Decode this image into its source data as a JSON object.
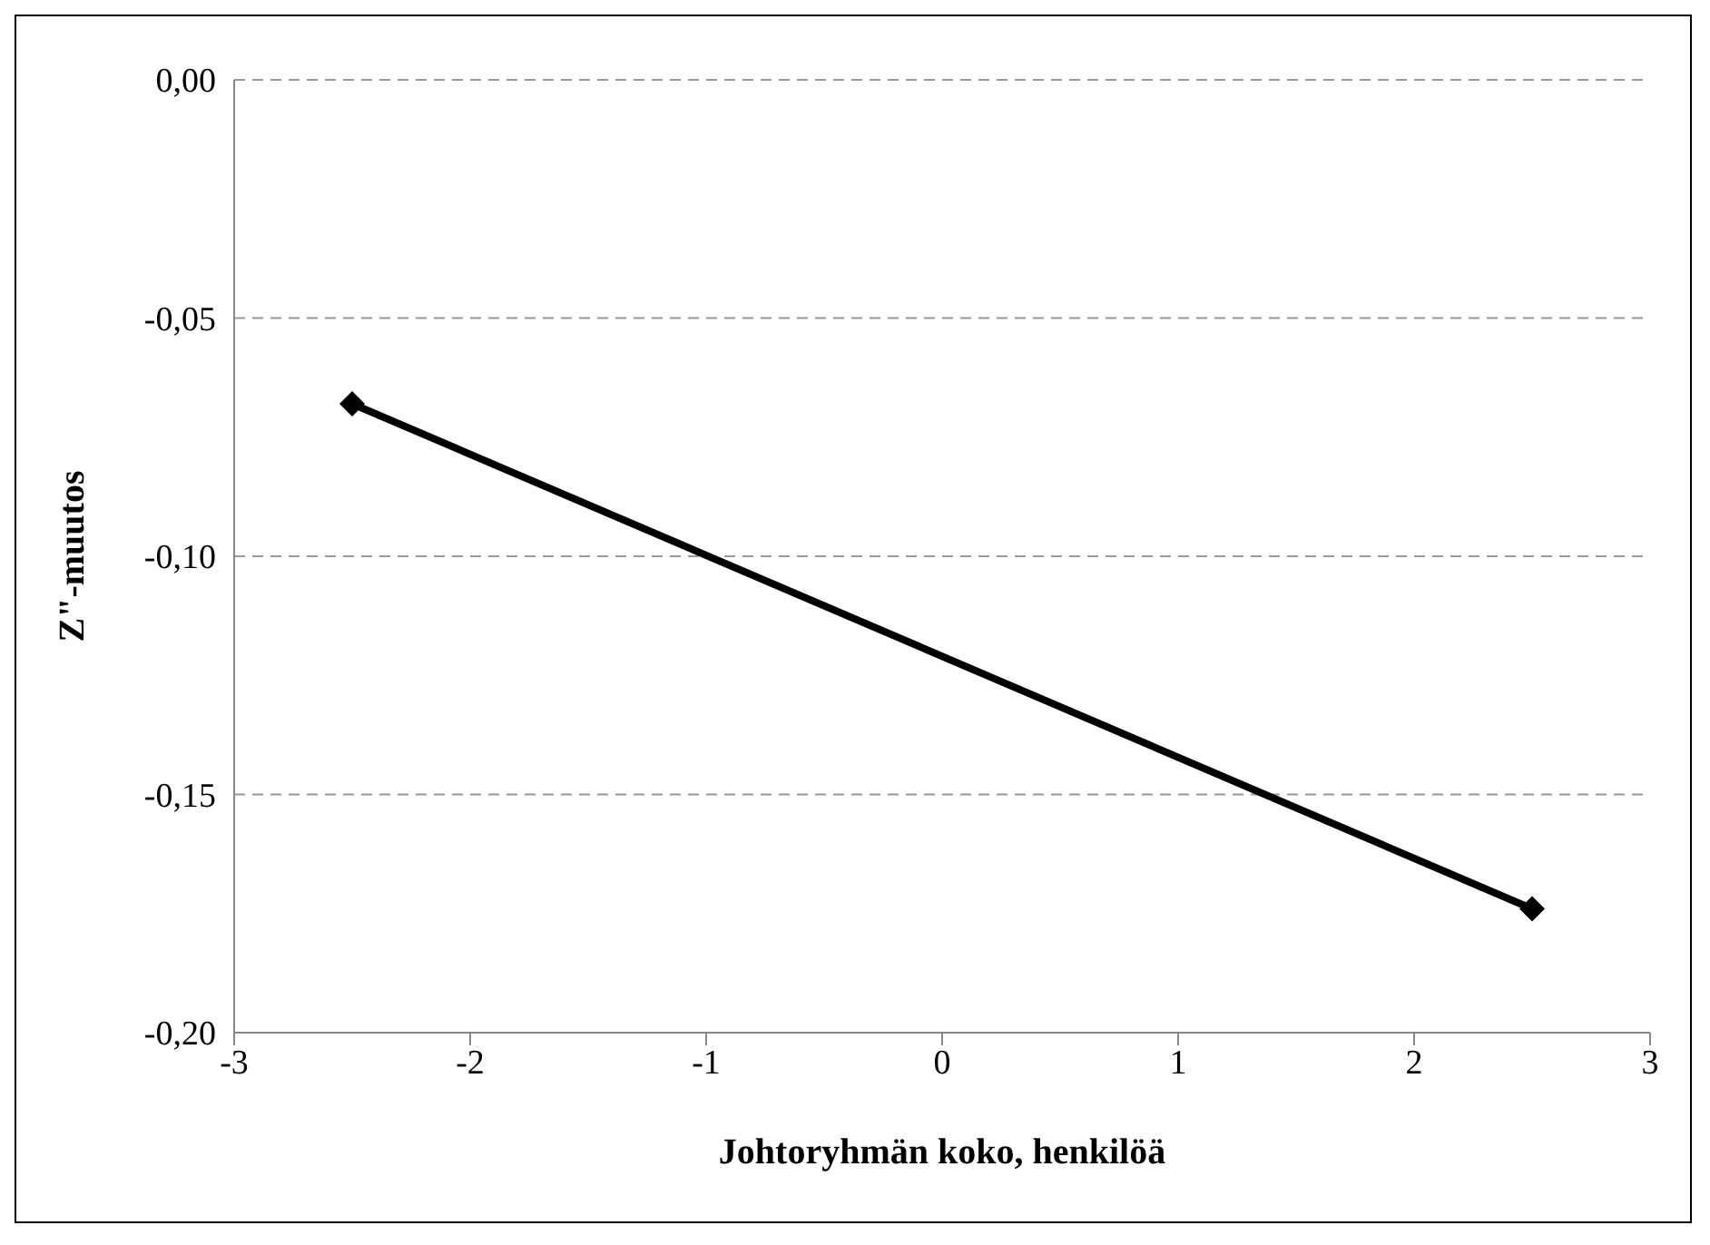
{
  "chart_data": {
    "type": "line",
    "xlabel": "Johtoryhmän koko, henkilöä",
    "ylabel": "Z\"-muutos",
    "x": [
      -2.5,
      2.5
    ],
    "series": [
      {
        "color": "#000000",
        "values": [
          -0.068,
          -0.174
        ]
      }
    ],
    "xlim": [
      -3,
      3
    ],
    "xticks": [
      -3,
      -2,
      -1,
      0,
      1,
      2,
      3
    ],
    "ylim": [
      -0.2,
      0
    ],
    "yticks": [
      {
        "value": -0.2,
        "label": "-0,20"
      },
      {
        "value": -0.15,
        "label": "-0,15"
      },
      {
        "value": -0.1,
        "label": "-0,10"
      },
      {
        "value": -0.05,
        "label": "-0,05"
      },
      {
        "value": 0,
        "label": "0,00"
      }
    ],
    "grid": "y",
    "marker": "diamond",
    "line_style": "solid"
  }
}
